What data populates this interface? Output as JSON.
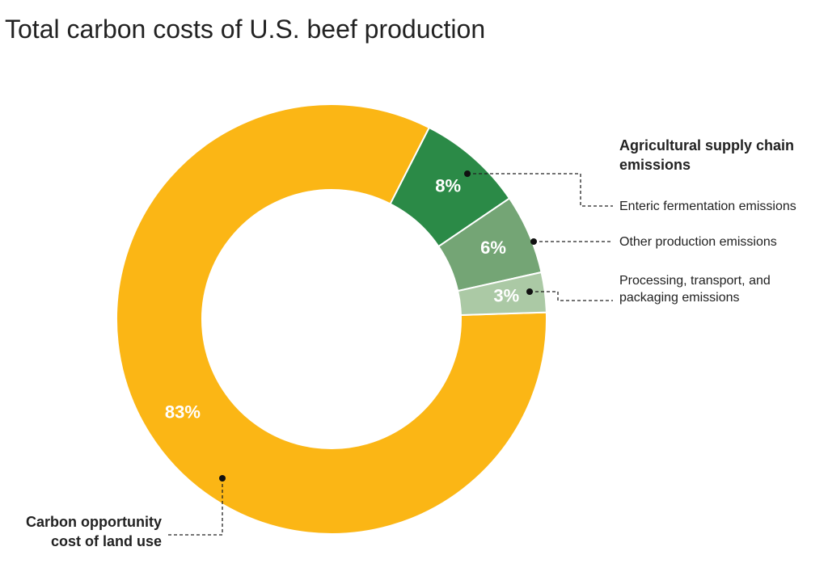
{
  "chart_data": {
    "type": "pie",
    "title": "Total carbon costs of U.S. beef production",
    "categories": [
      "Carbon opportunity cost of land use",
      "Enteric fermentation emissions",
      "Other production emissions",
      "Processing, transport, and packaging emissions"
    ],
    "values": [
      83,
      8,
      6,
      3
    ],
    "value_labels": [
      "83%",
      "8%",
      "6%",
      "3%"
    ],
    "colors": [
      "#fbb615",
      "#2b8a47",
      "#74a575",
      "#abc9a5"
    ],
    "group_label": "Agricultural supply chain emissions"
  }
}
